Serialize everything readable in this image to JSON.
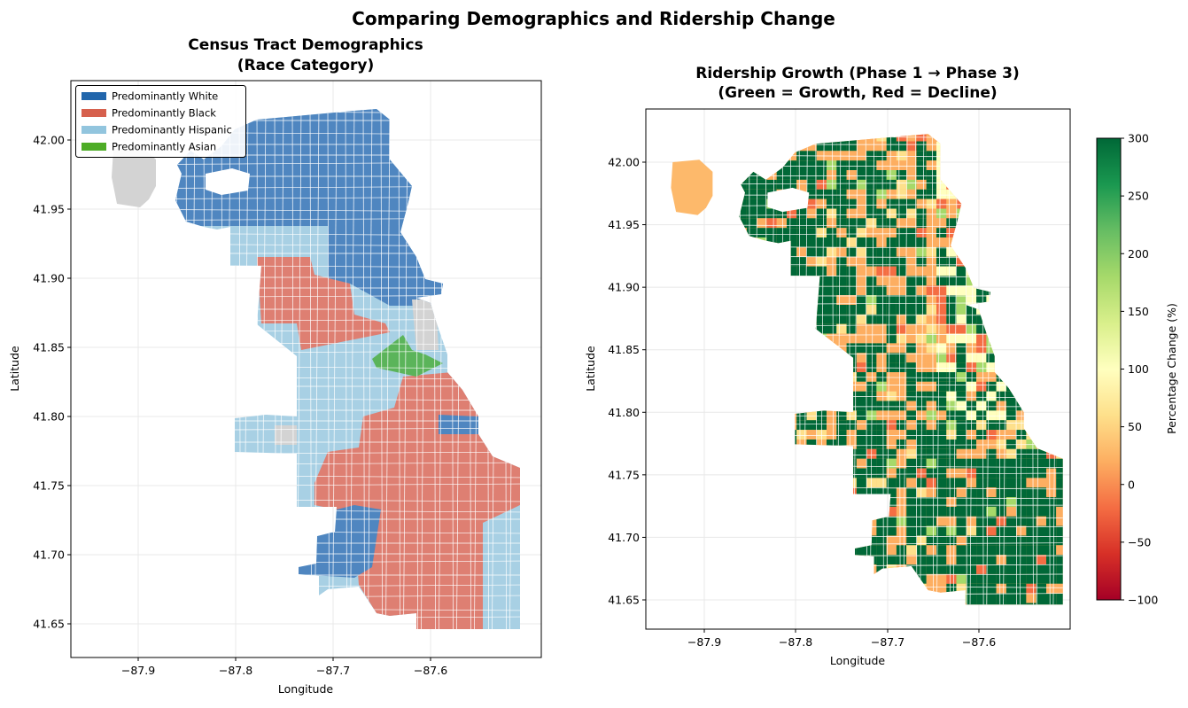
{
  "figure": {
    "title": "Comparing Demographics and Ridership Change"
  },
  "chart_data": [
    {
      "type": "choropleth-map",
      "title_lines": [
        "Census Tract Demographics",
        "(Race Category)"
      ],
      "xlabel": "Longitude",
      "ylabel": "Latitude",
      "xticks": [
        "−87.9",
        "−87.8",
        "−87.7",
        "−87.6"
      ],
      "yticks": [
        "42.00",
        "41.95",
        "41.90",
        "41.85",
        "41.80",
        "41.75",
        "41.70",
        "41.65"
      ],
      "xlim": [
        -87.97,
        -87.49
      ],
      "ylim": [
        41.63,
        42.04
      ],
      "grid": true,
      "legend_position": "upper-left",
      "legend": [
        {
          "label": "Predominantly White",
          "color": "#2166ac"
        },
        {
          "label": "Predominantly Black",
          "color": "#d6604d"
        },
        {
          "label": "Predominantly Hispanic",
          "color": "#92c5de"
        },
        {
          "label": "Predominantly Asian",
          "color": "#4dac26"
        }
      ],
      "no_data_color": "#d3d3d3"
    },
    {
      "type": "choropleth-map",
      "title_lines": [
        "Ridership Growth (Phase 1 → Phase 3)",
        "(Green = Growth, Red = Decline)"
      ],
      "xlabel": "Longitude",
      "ylabel": "Latitude",
      "xticks": [
        "−87.9",
        "−87.8",
        "−87.7",
        "−87.6"
      ],
      "yticks": [
        "42.00",
        "41.95",
        "41.90",
        "41.85",
        "41.80",
        "41.75",
        "41.70",
        "41.65"
      ],
      "xlim": [
        -87.96,
        -87.5
      ],
      "ylim": [
        41.63,
        42.04
      ],
      "grid": true,
      "colormap": "RdYlGn",
      "colorbar": {
        "label": "Percentage Change (%)",
        "range": [
          -100,
          300
        ],
        "ticks": [
          "300",
          "250",
          "200",
          "150",
          "100",
          "50",
          "0",
          "−50",
          "−100"
        ]
      }
    }
  ]
}
